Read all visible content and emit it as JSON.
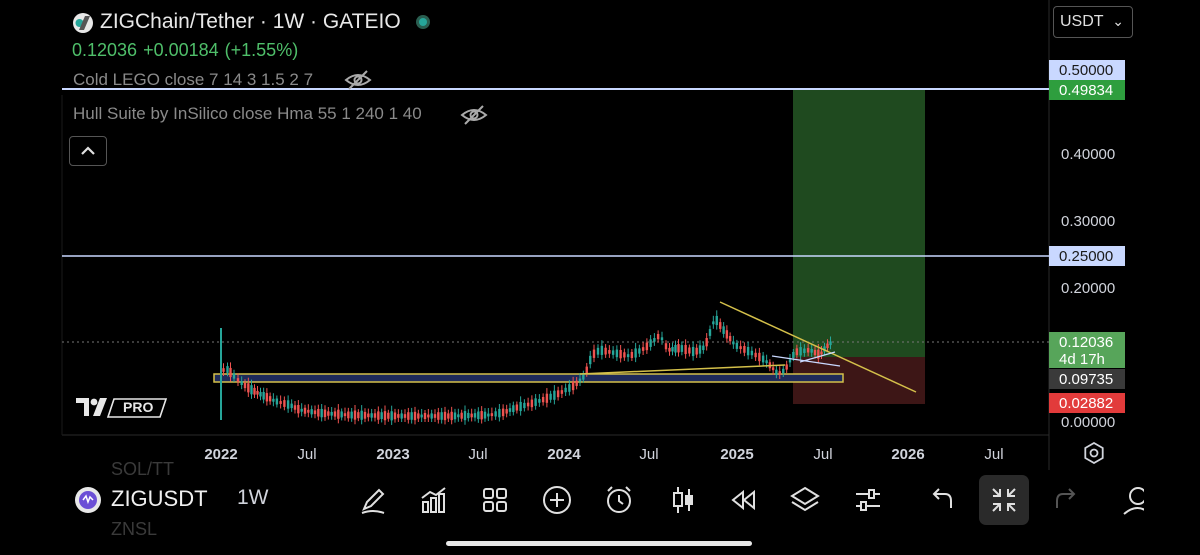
{
  "header": {
    "title": "ZIGChain/Tether · 1W · GATEIO",
    "price": "0.12036",
    "change": "+0.00184",
    "change_pct": "(+1.55%)"
  },
  "indicators": [
    {
      "label": "Cold LEGO close 7 14 3 1.5 2 7"
    },
    {
      "label": "Hull Suite by InSilico close Hma 55 1 240 1 40"
    }
  ],
  "currency": {
    "label": "USDT"
  },
  "y_axis": {
    "ticks": [
      "0.40000",
      "0.30000",
      "0.20000",
      "0.00000"
    ]
  },
  "price_labels": [
    {
      "text": "0.50000",
      "bg": "#c9d8ff",
      "fg": "#1a1a1a"
    },
    {
      "text": "0.49834",
      "bg": "#2e9e3e",
      "fg": "#ffffff"
    },
    {
      "text": "0.25000",
      "bg": "#c9d8ff",
      "fg": "#1a1a1a"
    },
    {
      "text": "0.12036",
      "bg": "#57a55a",
      "fg": "#ffffff"
    },
    {
      "text": "4d 17h",
      "bg": "#57a55a",
      "fg": "#ffffff"
    },
    {
      "text": "0.09735",
      "bg": "#3a3a3a",
      "fg": "#ffffff"
    },
    {
      "text": "0.02882",
      "bg": "#e23b3b",
      "fg": "#ffffff"
    }
  ],
  "x_axis": {
    "ticks": [
      {
        "label": "2022",
        "year": true
      },
      {
        "label": "Jul",
        "year": false
      },
      {
        "label": "2023",
        "year": true
      },
      {
        "label": "Jul",
        "year": false
      },
      {
        "label": "2024",
        "year": true
      },
      {
        "label": "Jul",
        "year": false
      },
      {
        "label": "2025",
        "year": true
      },
      {
        "label": "Jul",
        "year": false
      },
      {
        "label": "2026",
        "year": true
      },
      {
        "label": "Jul",
        "year": false
      }
    ]
  },
  "watermark": {
    "text": "PRO"
  },
  "toolbar": {
    "symbol": "ZIGUSDT",
    "timeframe": "1W",
    "ghost_above": "SOL/TT",
    "ghost_below": "ZNSL",
    "tools": [
      "draw-icon",
      "indicators-icon",
      "layouts-icon",
      "add-icon",
      "alert-icon",
      "candles-icon",
      "replay-icon",
      "layers-icon",
      "settings-sliders-icon",
      "undo-icon",
      "fullscreen-exit-icon",
      "redo-icon",
      "account-icon"
    ]
  },
  "colors": {
    "up": "#26a69a",
    "down": "#ef5350",
    "long_profit": "#1f4a1f",
    "long_loss": "#3d1616",
    "trendline": "#d4c04a",
    "hline": "#c9d8ff"
  }
}
